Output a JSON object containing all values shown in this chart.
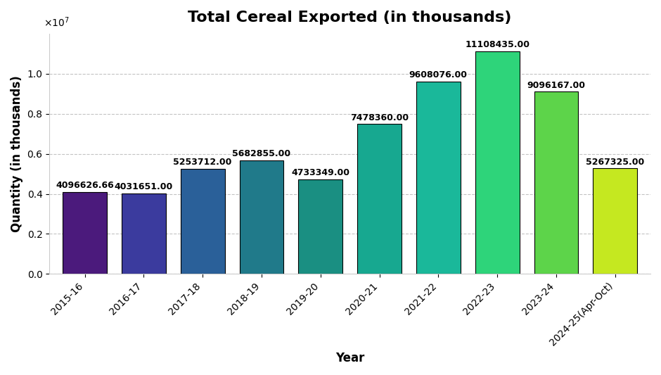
{
  "categories": [
    "2015-16",
    "2016-17",
    "2017-18",
    "2018-19",
    "2019-20",
    "2020-21",
    "2021-22",
    "2022-23",
    "2023-24",
    "2024-25(Apr-Oct)"
  ],
  "values": [
    4096626.66,
    4031651.0,
    5253712.0,
    5682855.0,
    4733349.0,
    7478360.0,
    9608076.0,
    11108435.0,
    9096167.0,
    5267325.0
  ],
  "bar_colors": [
    "#4b1a7c",
    "#3b3b9e",
    "#2a6099",
    "#207a8a",
    "#1a8f82",
    "#17a890",
    "#1ab89a",
    "#2ed47a",
    "#5dd44a",
    "#c5e820"
  ],
  "title": "Total Cereal Exported (in thousands)",
  "xlabel": "Year",
  "ylabel": "Quantity (in thousands)",
  "ylim_max": 12000000,
  "background_color": "#ffffff",
  "plot_bg_color": "#ffffff",
  "grid_color": "#aaaaaa",
  "title_fontsize": 16,
  "label_fontsize": 12,
  "tick_fontsize": 10,
  "value_fontsize": 9,
  "bar_width": 0.75
}
